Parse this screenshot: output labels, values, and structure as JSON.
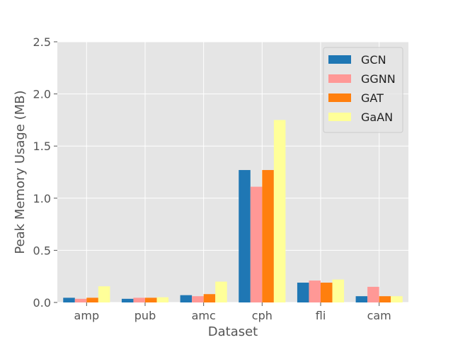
{
  "chart_data": {
    "type": "bar",
    "title": "",
    "xlabel": "Dataset",
    "ylabel": "Peak Memory Usage (MB)",
    "categories": [
      "amp",
      "pub",
      "amc",
      "cph",
      "fli",
      "cam"
    ],
    "ylim": [
      0,
      2.5
    ],
    "yticks": [
      0.0,
      0.5,
      1.0,
      1.5,
      2.0,
      2.5
    ],
    "ytick_labels": [
      "0.0",
      "0.5",
      "1.0",
      "1.5",
      "2.0",
      "2.5"
    ],
    "grid": true,
    "legend_position": "top-right",
    "series": [
      {
        "name": "GCN",
        "color": "#1f77b4",
        "values": [
          0.045,
          0.035,
          0.07,
          1.27,
          0.19,
          0.06
        ]
      },
      {
        "name": "GGNN",
        "color": "#ff9896",
        "values": [
          0.035,
          0.045,
          0.06,
          1.11,
          0.21,
          0.15
        ]
      },
      {
        "name": "GAT",
        "color": "#ff7f0e",
        "values": [
          0.045,
          0.045,
          0.08,
          1.27,
          0.19,
          0.06
        ]
      },
      {
        "name": "GaAN",
        "color": "#ffff99",
        "values": [
          0.155,
          0.05,
          0.2,
          1.75,
          0.22,
          0.06
        ]
      }
    ],
    "background_color": "#e5e5e5",
    "grid_color": "#ffffff"
  }
}
